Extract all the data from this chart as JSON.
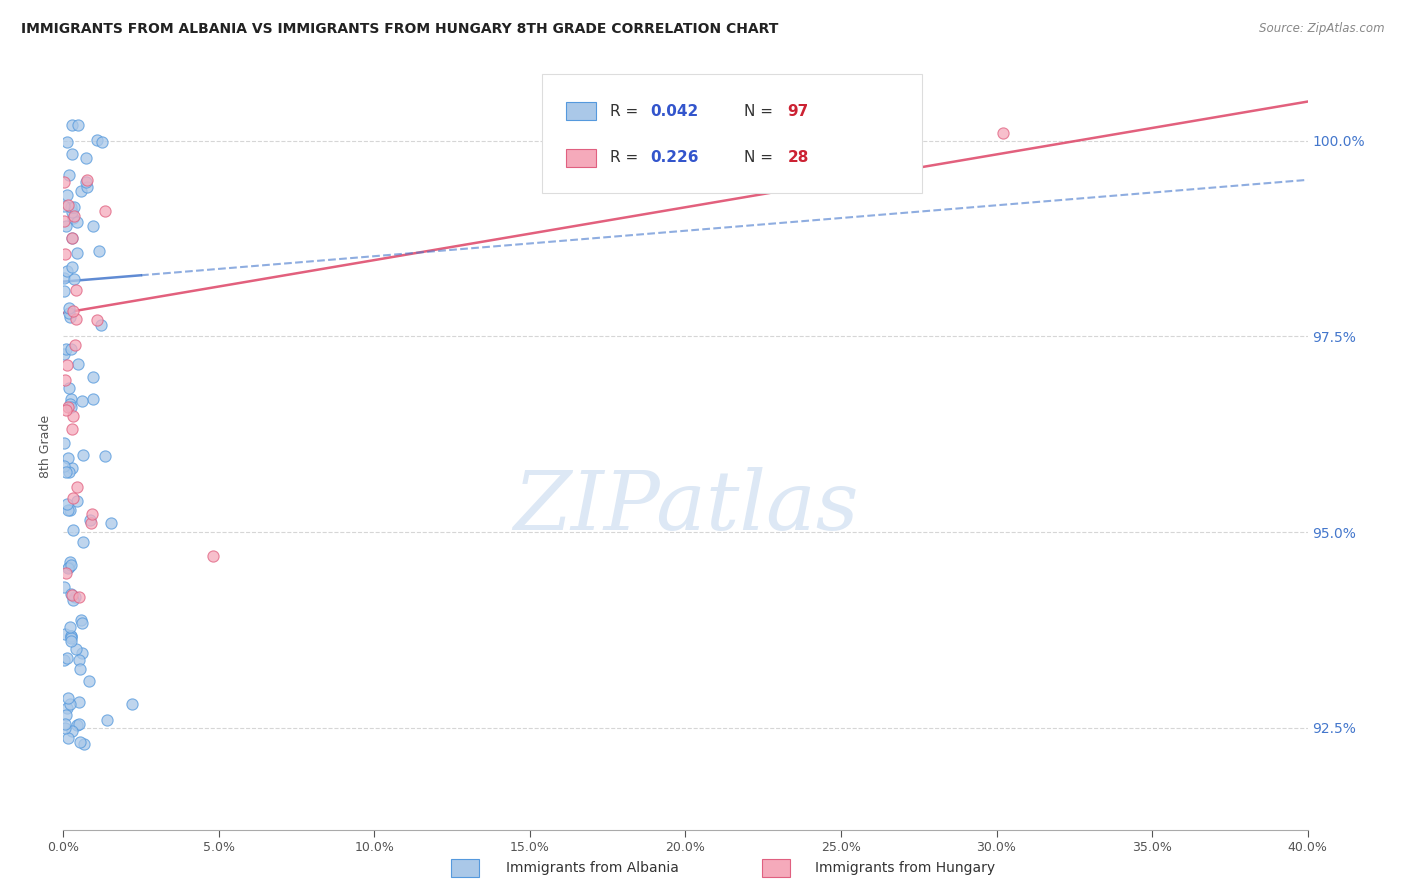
{
  "title": "IMMIGRANTS FROM ALBANIA VS IMMIGRANTS FROM HUNGARY 8TH GRADE CORRELATION CHART",
  "source": "Source: ZipAtlas.com",
  "ylabel": "8th Grade",
  "right_yticks": [
    92.5,
    95.0,
    97.5,
    100.0
  ],
  "right_ytick_labels": [
    "92.5%",
    "95.0%",
    "97.5%",
    "100.0%"
  ],
  "xmin": 0.0,
  "xmax": 40.0,
  "ymin": 91.2,
  "ymax": 101.0,
  "albania_color": "#aac8e8",
  "hungary_color": "#f5aabb",
  "albania_edge_color": "#5599dd",
  "hungary_edge_color": "#e06080",
  "albania_line_color": "#4477cc",
  "hungary_line_color": "#dd4466",
  "albania_R": 0.042,
  "albania_N": 97,
  "hungary_R": 0.226,
  "hungary_N": 28,
  "legend_color": "#3355cc",
  "legend_N_color": "#cc2233",
  "watermark": "ZIPatlas",
  "watermark_color": "#dde8f5",
  "albania_legend_label": "Immigrants from Albania",
  "hungary_legend_label": "Immigrants from Hungary"
}
